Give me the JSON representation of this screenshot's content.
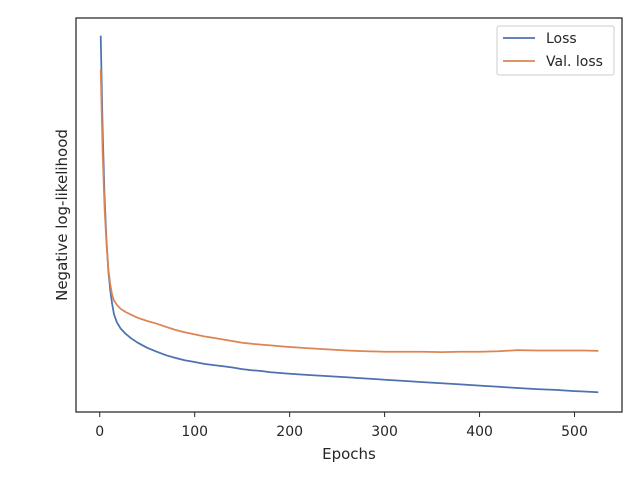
{
  "chart_data": {
    "type": "line",
    "xlabel": "Epochs",
    "ylabel": "Negative log-likelihood",
    "xlim": [
      -25,
      550
    ],
    "ylim": [
      0,
      1
    ],
    "y_ticks_shown": false,
    "x_ticks": [
      0,
      100,
      200,
      300,
      400,
      500
    ],
    "x_tick_labels": [
      "0",
      "100",
      "200",
      "300",
      "400",
      "500"
    ],
    "grid": false,
    "legend_position": "top-right",
    "series": [
      {
        "name": "Loss",
        "color": "#4c72b0",
        "points": [
          [
            1,
            0.955
          ],
          [
            3,
            0.72
          ],
          [
            5,
            0.55
          ],
          [
            7,
            0.44
          ],
          [
            9,
            0.36
          ],
          [
            11,
            0.31
          ],
          [
            13,
            0.275
          ],
          [
            15,
            0.248
          ],
          [
            18,
            0.228
          ],
          [
            22,
            0.212
          ],
          [
            27,
            0.199
          ],
          [
            33,
            0.187
          ],
          [
            40,
            0.176
          ],
          [
            50,
            0.163
          ],
          [
            60,
            0.153
          ],
          [
            70,
            0.144
          ],
          [
            80,
            0.137
          ],
          [
            90,
            0.131
          ],
          [
            100,
            0.127
          ],
          [
            110,
            0.122
          ],
          [
            120,
            0.119
          ],
          [
            130,
            0.116
          ],
          [
            140,
            0.113
          ],
          [
            150,
            0.109
          ],
          [
            160,
            0.106
          ],
          [
            170,
            0.104
          ],
          [
            180,
            0.101
          ],
          [
            190,
            0.099
          ],
          [
            200,
            0.097
          ],
          [
            220,
            0.094
          ],
          [
            240,
            0.091
          ],
          [
            260,
            0.088
          ],
          [
            280,
            0.085
          ],
          [
            300,
            0.082
          ],
          [
            320,
            0.079
          ],
          [
            340,
            0.076
          ],
          [
            360,
            0.073
          ],
          [
            380,
            0.07
          ],
          [
            400,
            0.067
          ],
          [
            420,
            0.064
          ],
          [
            440,
            0.061
          ],
          [
            460,
            0.058
          ],
          [
            480,
            0.056
          ],
          [
            500,
            0.053
          ],
          [
            510,
            0.052
          ],
          [
            525,
            0.05
          ]
        ]
      },
      {
        "name": "Val. loss",
        "color": "#dd8452",
        "points": [
          [
            1,
            0.87
          ],
          [
            3,
            0.66
          ],
          [
            5,
            0.52
          ],
          [
            7,
            0.43
          ],
          [
            9,
            0.365
          ],
          [
            11,
            0.325
          ],
          [
            13,
            0.298
          ],
          [
            15,
            0.283
          ],
          [
            18,
            0.272
          ],
          [
            22,
            0.262
          ],
          [
            27,
            0.254
          ],
          [
            33,
            0.247
          ],
          [
            40,
            0.239
          ],
          [
            50,
            0.231
          ],
          [
            60,
            0.224
          ],
          [
            70,
            0.216
          ],
          [
            80,
            0.208
          ],
          [
            90,
            0.202
          ],
          [
            100,
            0.197
          ],
          [
            110,
            0.192
          ],
          [
            120,
            0.188
          ],
          [
            130,
            0.184
          ],
          [
            140,
            0.18
          ],
          [
            150,
            0.176
          ],
          [
            160,
            0.173
          ],
          [
            170,
            0.171
          ],
          [
            180,
            0.169
          ],
          [
            190,
            0.167
          ],
          [
            200,
            0.165
          ],
          [
            220,
            0.162
          ],
          [
            240,
            0.159
          ],
          [
            260,
            0.156
          ],
          [
            280,
            0.154
          ],
          [
            300,
            0.153
          ],
          [
            320,
            0.153
          ],
          [
            340,
            0.153
          ],
          [
            360,
            0.152
          ],
          [
            380,
            0.153
          ],
          [
            400,
            0.153
          ],
          [
            420,
            0.154
          ],
          [
            440,
            0.157
          ],
          [
            460,
            0.156
          ],
          [
            480,
            0.156
          ],
          [
            500,
            0.156
          ],
          [
            510,
            0.156
          ],
          [
            525,
            0.155
          ]
        ]
      }
    ]
  }
}
